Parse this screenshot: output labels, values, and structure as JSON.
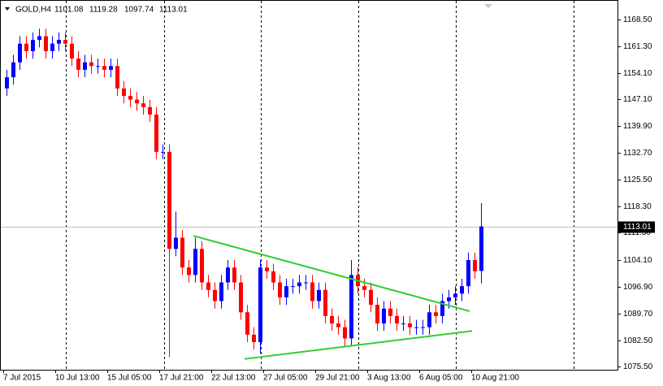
{
  "chart_data": {
    "type": "candlestick",
    "title": "GOLD,H4",
    "up_color": "#0000ff",
    "down_color": "#ff0000",
    "trendline_color": "#32cd32",
    "ylim": [
      1074.6,
      1173.7
    ],
    "yticks": [
      {
        "value": 1168.5,
        "label": "1168.50"
      },
      {
        "value": 1161.3,
        "label": "1161.30"
      },
      {
        "value": 1154.1,
        "label": "1154.10"
      },
      {
        "value": 1147.1,
        "label": "1147.10"
      },
      {
        "value": 1139.9,
        "label": "1139.90"
      },
      {
        "value": 1132.7,
        "label": "1132.70"
      },
      {
        "value": 1125.5,
        "label": "1125.50"
      },
      {
        "value": 1118.3,
        "label": "1118.30"
      },
      {
        "value": 1111.3,
        "label": "1111.30"
      },
      {
        "value": 1104.1,
        "label": "1104.10"
      },
      {
        "value": 1096.9,
        "label": "1096.90"
      },
      {
        "value": 1089.7,
        "label": "1089.70"
      },
      {
        "value": 1082.5,
        "label": "1082.50"
      },
      {
        "value": 1075.5,
        "label": "1075.50"
      }
    ],
    "last_price": 1113.01,
    "x_labels": [
      "7 Jul 2015",
      "10 Jul 13:00",
      "15 Jul 05:00",
      "17 Jul 21:00",
      "22 Jul 13:00",
      "27 Jul 05:00",
      "29 Jul 21:00",
      "3 Aug 13:00",
      "6 Aug 05:00",
      "10 Aug 21:00"
    ],
    "open": [
      1150,
      1153,
      1157,
      1162,
      1160,
      1163,
      1164,
      1160,
      1162,
      1163,
      1162,
      1158,
      1155,
      1157,
      1156,
      1156,
      1155,
      1156,
      1150,
      1148,
      1147,
      1146,
      1145,
      1143,
      1133,
      1133,
      1107,
      1110,
      1102,
      1100,
      1107,
      1098,
      1096,
      1093,
      1098,
      1102,
      1098,
      1090,
      1084,
      1082,
      1102,
      1101,
      1098,
      1094,
      1097,
      1097,
      1098,
      1098,
      1093,
      1096,
      1089,
      1087,
      1086,
      1083,
      1100,
      1097,
      1096,
      1092,
      1087,
      1091,
      1089,
      1087,
      1087,
      1086,
      1086,
      1086,
      1090,
      1089,
      1093,
      1094,
      1095,
      1097,
      1104,
      1101.08
    ],
    "high": [
      1155,
      1159,
      1164,
      1164,
      1165,
      1166,
      1166,
      1164,
      1165,
      1165,
      1164,
      1160,
      1159,
      1159,
      1158,
      1158,
      1158,
      1158,
      1152,
      1150,
      1149,
      1148,
      1147,
      1145,
      1135,
      1135,
      1117,
      1112,
      1104,
      1110,
      1109,
      1100,
      1098,
      1100,
      1104,
      1104,
      1100,
      1092,
      1086,
      1104,
      1104,
      1103,
      1100,
      1099,
      1099,
      1100,
      1100,
      1100,
      1098,
      1098,
      1091,
      1089,
      1088,
      1104,
      1102,
      1099,
      1098,
      1094,
      1093,
      1093,
      1091,
      1089,
      1089,
      1088,
      1088,
      1092,
      1092,
      1095,
      1096,
      1097,
      1099,
      1106,
      1106,
      1119.28
    ],
    "low": [
      1148,
      1151,
      1155,
      1158,
      1158,
      1161,
      1158,
      1158,
      1160,
      1160,
      1156,
      1153,
      1153,
      1154,
      1154,
      1153,
      1153,
      1148,
      1146,
      1145,
      1144,
      1143,
      1141,
      1131,
      1131,
      1078,
      1105,
      1100,
      1098,
      1098,
      1096,
      1094,
      1091,
      1091,
      1096,
      1096,
      1088,
      1082,
      1080,
      1079,
      1099,
      1096,
      1092,
      1092,
      1095,
      1095,
      1096,
      1091,
      1091,
      1087,
      1085,
      1084,
      1081,
      1081,
      1095,
      1094,
      1090,
      1085,
      1085,
      1087,
      1085,
      1085,
      1084,
      1084,
      1084,
      1084,
      1087,
      1087,
      1091,
      1092,
      1093,
      1095,
      1099,
      1097.74
    ],
    "close": [
      1153,
      1157,
      1162,
      1160,
      1163,
      1164,
      1160,
      1162,
      1163,
      1162,
      1158,
      1155,
      1157,
      1156,
      1156,
      1155,
      1156,
      1150,
      1148,
      1147,
      1146,
      1145,
      1143,
      1133,
      1133,
      1107,
      1110,
      1102,
      1100,
      1107,
      1098,
      1096,
      1093,
      1098,
      1102,
      1098,
      1090,
      1084,
      1082,
      1102,
      1101,
      1098,
      1094,
      1097,
      1097,
      1098,
      1098,
      1093,
      1096,
      1089,
      1087,
      1086,
      1083,
      1100,
      1097,
      1096,
      1092,
      1087,
      1091,
      1089,
      1087,
      1087,
      1086,
      1086,
      1086,
      1090,
      1089,
      1093,
      1094,
      1095,
      1097,
      1104,
      1101,
      1113.01
    ],
    "trendlines": [
      {
        "from": 1110.5,
        "to": 1090.3
      },
      {
        "from": 1077.5,
        "to": 1085.0
      }
    ]
  }
}
